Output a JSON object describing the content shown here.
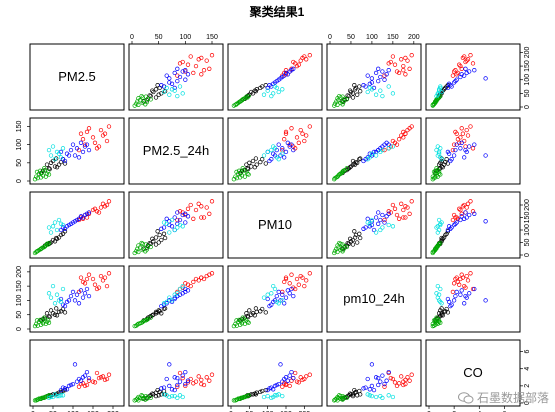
{
  "chart_data": {
    "type": "scatter",
    "title": "聚类结果1",
    "variables": [
      {
        "name": "PM2.5",
        "lim": [
          0,
          220
        ],
        "ticks": [
          0,
          50,
          100,
          150,
          200
        ]
      },
      {
        "name": "PM2.5_24h",
        "lim": [
          0,
          165
        ],
        "ticks": [
          0,
          50,
          100,
          150
        ]
      },
      {
        "name": "PM10",
        "lim": [
          0,
          240
        ],
        "ticks": [
          0,
          50,
          100,
          150,
          200
        ]
      },
      {
        "name": "pm10_24h",
        "lim": [
          0,
          210
        ],
        "ticks": [
          0,
          50,
          100,
          150,
          200
        ]
      },
      {
        "name": "CO",
        "lim": [
          0,
          7
        ],
        "ticks": [
          0,
          2,
          4,
          6
        ]
      }
    ],
    "clusters": [
      {
        "color": "#000000",
        "points": [
          [
            40,
            35,
            45,
            45,
            0.9
          ],
          [
            55,
            40,
            55,
            50,
            1.0
          ],
          [
            30,
            30,
            38,
            40,
            0.7
          ],
          [
            65,
            45,
            70,
            60,
            1.2
          ],
          [
            50,
            55,
            60,
            55,
            1.0
          ],
          [
            75,
            60,
            85,
            70,
            1.4
          ],
          [
            45,
            50,
            50,
            65,
            0.9
          ],
          [
            35,
            45,
            42,
            55,
            0.8
          ],
          [
            60,
            38,
            65,
            48,
            1.1
          ],
          [
            25,
            28,
            30,
            35,
            0.6
          ],
          [
            70,
            52,
            80,
            62,
            1.3
          ],
          [
            20,
            22,
            25,
            30,
            0.5
          ],
          [
            80,
            48,
            95,
            58,
            1.5
          ],
          [
            58,
            62,
            68,
            72,
            1.0
          ],
          [
            42,
            33,
            47,
            42,
            0.8
          ]
        ]
      },
      {
        "color": "#ff0000",
        "points": [
          [
            150,
            120,
            180,
            175,
            2.5
          ],
          [
            170,
            140,
            190,
            185,
            3.0
          ],
          [
            130,
            100,
            160,
            160,
            2.0
          ],
          [
            185,
            110,
            200,
            150,
            2.8
          ],
          [
            120,
            130,
            150,
            180,
            2.2
          ],
          [
            160,
            90,
            175,
            140,
            3.5
          ],
          [
            140,
            145,
            165,
            190,
            2.6
          ],
          [
            175,
            125,
            205,
            170,
            3.1
          ],
          [
            115,
            85,
            140,
            130,
            1.9
          ],
          [
            190,
            150,
            215,
            195,
            3.3
          ],
          [
            155,
            105,
            185,
            155,
            2.4
          ],
          [
            135,
            135,
            150,
            175,
            2.1
          ],
          [
            165,
            95,
            170,
            145,
            2.9
          ],
          [
            125,
            115,
            145,
            165,
            2.3
          ],
          [
            180,
            130,
            195,
            180,
            2.7
          ]
        ]
      },
      {
        "color": "#00aa00",
        "points": [
          [
            15,
            20,
            20,
            25,
            0.5
          ],
          [
            25,
            15,
            30,
            20,
            0.6
          ],
          [
            10,
            25,
            15,
            30,
            0.4
          ],
          [
            30,
            30,
            35,
            35,
            0.7
          ],
          [
            20,
            10,
            25,
            15,
            0.5
          ],
          [
            35,
            20,
            45,
            25,
            0.8
          ],
          [
            8,
            12,
            12,
            18,
            0.3
          ],
          [
            28,
            35,
            32,
            40,
            0.6
          ],
          [
            18,
            28,
            22,
            32,
            0.5
          ],
          [
            40,
            18,
            48,
            22,
            0.9
          ],
          [
            12,
            8,
            16,
            12,
            0.4
          ],
          [
            22,
            22,
            27,
            28,
            0.6
          ],
          [
            32,
            12,
            38,
            18,
            0.7
          ],
          [
            5,
            5,
            8,
            10,
            0.3
          ],
          [
            38,
            26,
            42,
            30,
            0.8
          ]
        ]
      },
      {
        "color": "#0000ff",
        "points": [
          [
            90,
            70,
            120,
            100,
            2.0
          ],
          [
            110,
            90,
            140,
            120,
            2.5
          ],
          [
            75,
            60,
            110,
            85,
            1.8
          ],
          [
            125,
            80,
            150,
            110,
            3.0
          ],
          [
            100,
            100,
            130,
            130,
            2.2
          ],
          [
            85,
            75,
            115,
            95,
            1.6
          ],
          [
            115,
            65,
            145,
            90,
            2.8
          ],
          [
            95,
            85,
            125,
            115,
            2.1
          ],
          [
            130,
            95,
            160,
            125,
            3.2
          ],
          [
            80,
            55,
            105,
            80,
            1.7
          ],
          [
            120,
            105,
            155,
            135,
            2.6
          ],
          [
            105,
            70,
            135,
            100,
            4.5
          ],
          [
            140,
            85,
            170,
            115,
            2.9
          ],
          [
            70,
            80,
            100,
            105,
            1.5
          ],
          [
            135,
            100,
            165,
            140,
            3.6
          ]
        ]
      },
      {
        "color": "#00e0e0",
        "points": [
          [
            60,
            80,
            100,
            120,
            0.8
          ],
          [
            45,
            70,
            90,
            110,
            0.7
          ],
          [
            75,
            90,
            120,
            140,
            0.9
          ],
          [
            55,
            60,
            130,
            90,
            1.0
          ],
          [
            40,
            85,
            110,
            125,
            0.6
          ],
          [
            65,
            75,
            140,
            100,
            0.8
          ],
          [
            50,
            95,
            115,
            150,
            0.7
          ],
          [
            70,
            65,
            125,
            95,
            0.9
          ]
        ]
      }
    ],
    "grid": false,
    "legend": "none"
  },
  "watermark": "石墨数据部落"
}
